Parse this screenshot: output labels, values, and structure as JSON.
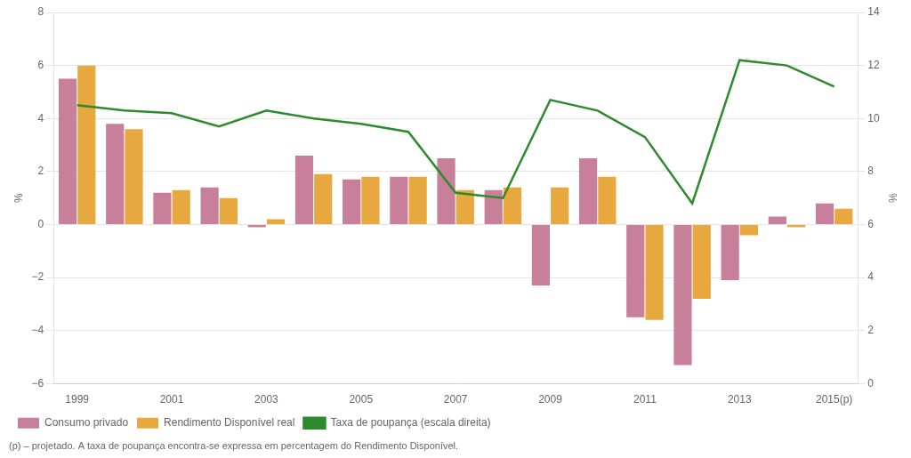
{
  "chart_data": {
    "type": "bar",
    "categories": [
      "1999",
      null,
      "2001",
      null,
      "2003",
      null,
      "2005",
      null,
      "2007",
      null,
      "2009",
      null,
      "2011",
      null,
      "2013",
      null,
      "2015(p)"
    ],
    "series": [
      {
        "name": "Consumo privado",
        "color": "#c8809a",
        "values": [
          5.5,
          3.8,
          1.2,
          1.4,
          -0.1,
          2.6,
          1.7,
          1.8,
          2.5,
          1.3,
          -2.3,
          2.5,
          -3.5,
          -5.3,
          -2.1,
          0.3,
          0.8
        ]
      },
      {
        "name": "Rendimento Disponível real",
        "color": "#e8a840",
        "values": [
          6.0,
          3.6,
          1.3,
          1.0,
          0.2,
          1.9,
          1.8,
          1.8,
          1.3,
          1.4,
          1.4,
          1.8,
          -3.6,
          -2.8,
          -0.4,
          -0.1,
          0.6
        ]
      },
      {
        "name": "Taxa de poupança (escala direita)",
        "color": "#2d8a2d",
        "type": "line",
        "axis": "y2",
        "values": [
          10.5,
          10.3,
          10.2,
          9.7,
          10.3,
          10.0,
          9.8,
          9.5,
          7.2,
          7.0,
          10.7,
          10.3,
          9.3,
          6.8,
          12.2,
          12.0,
          11.2
        ]
      }
    ],
    "ylabel": "%",
    "y2label": "%",
    "annotations": [
      "(p) – projetado. A taxa de poupança encontra-se expressa em percentagem do Rendimento Disponível."
    ],
    "ylim": [
      -6,
      8
    ],
    "yticks": [
      {
        "value": -6,
        "label": "−6"
      },
      {
        "value": -4,
        "label": "−4"
      },
      {
        "value": -2,
        "label": "−2"
      },
      0,
      2,
      4,
      6,
      8
    ],
    "y2lim": [
      0,
      14
    ],
    "y2ticks": [
      0,
      2,
      4,
      6,
      8,
      10,
      12,
      14
    ],
    "grid": true,
    "legend": "lower left"
  }
}
